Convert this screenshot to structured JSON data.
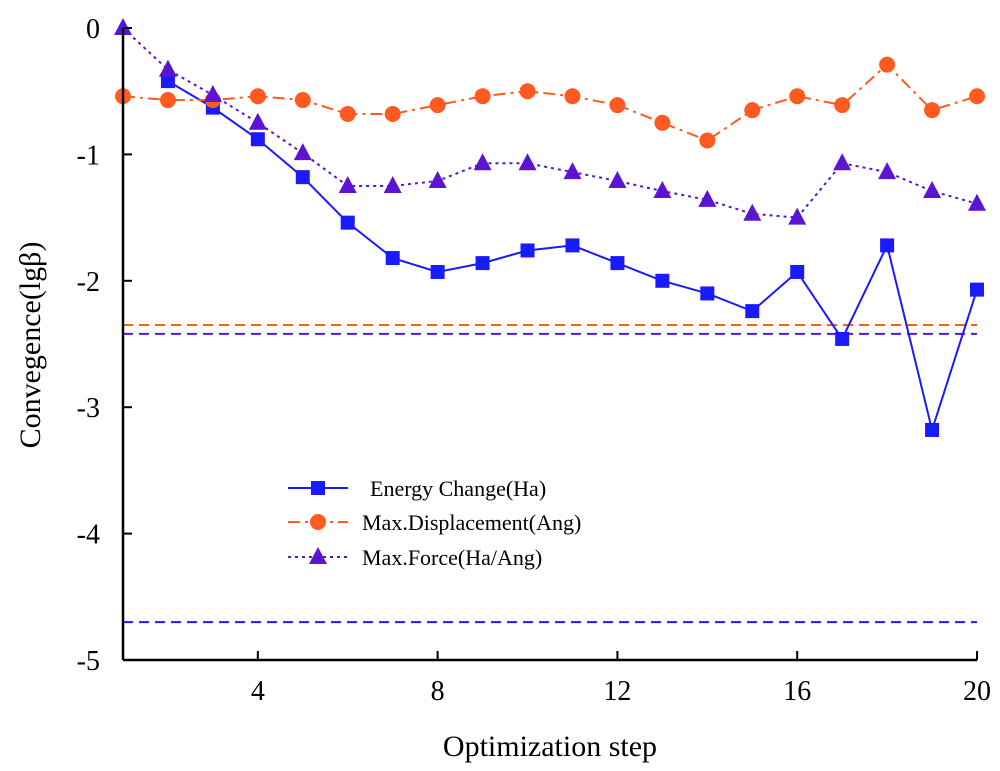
{
  "chart_data": {
    "type": "line",
    "xlabel": "Optimization step",
    "ylabel": "Convegence(lgβ)",
    "xlim": [
      1,
      20
    ],
    "ylim": [
      -5,
      0
    ],
    "xticks": [
      4,
      8,
      12,
      16,
      20
    ],
    "yticks": [
      0,
      -1,
      -2,
      -3,
      -4,
      -5
    ],
    "grid": false,
    "legend_position": "lower-middle",
    "series": [
      {
        "name": "Energy Change(Ha)",
        "color": "#1a1aff",
        "linestyle": "solid",
        "marker": "square",
        "x": [
          2,
          3,
          4,
          5,
          6,
          7,
          8,
          9,
          10,
          11,
          12,
          13,
          14,
          15,
          16,
          17,
          18,
          19,
          20
        ],
        "y": [
          -0.42,
          -0.63,
          -0.88,
          -1.18,
          -1.54,
          -1.82,
          -1.93,
          -1.86,
          -1.76,
          -1.72,
          -1.86,
          -2.0,
          -2.1,
          -2.24,
          -1.93,
          -2.46,
          -1.72,
          -3.18,
          -2.07
        ]
      },
      {
        "name": "Max.Displacement(Ang)",
        "color": "#ff5a1f",
        "linestyle": "dashdot",
        "marker": "circle",
        "x": [
          1,
          2,
          3,
          4,
          5,
          6,
          7,
          8,
          9,
          10,
          11,
          12,
          13,
          14,
          15,
          16,
          17,
          18,
          19,
          20
        ],
        "y": [
          -0.54,
          -0.57,
          -0.57,
          -0.54,
          -0.57,
          -0.68,
          -0.68,
          -0.61,
          -0.54,
          -0.5,
          -0.54,
          -0.61,
          -0.75,
          -0.89,
          -0.65,
          -0.54,
          -0.61,
          -0.29,
          -0.65,
          -0.54
        ]
      },
      {
        "name": "Max.Force(Ha/Ang)",
        "color": "#5a14d2",
        "linestyle": "dotted",
        "marker": "triangle",
        "x": [
          1,
          2,
          3,
          4,
          5,
          6,
          7,
          8,
          9,
          10,
          11,
          12,
          13,
          14,
          15,
          16,
          17,
          18,
          19,
          20
        ],
        "y": [
          0.0,
          -0.33,
          -0.53,
          -0.75,
          -0.99,
          -1.25,
          -1.25,
          -1.21,
          -1.07,
          -1.07,
          -1.14,
          -1.21,
          -1.29,
          -1.36,
          -1.47,
          -1.5,
          -1.07,
          -1.14,
          -1.29,
          -1.39
        ]
      }
    ],
    "reference_lines": [
      {
        "y": -2.35,
        "color": "#ff5a1f",
        "linestyle": "dashed"
      },
      {
        "y": -2.42,
        "color": "#5a14d2",
        "linestyle": "dashed"
      },
      {
        "y": -4.7,
        "color": "#1a1aff",
        "linestyle": "dashed"
      }
    ]
  }
}
